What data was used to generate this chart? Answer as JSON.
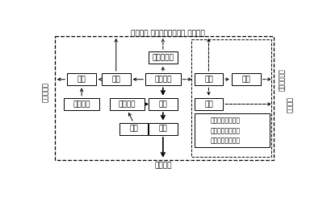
{
  "title_top": "输出电力 输出煤气、液化气 输出焦炭",
  "left_label": "输出\n铝\n制\n品",
  "right_label_top": "输\n出\n化\n工\n产\n品",
  "right_label_bottom": "输\n出\n水\n泥",
  "bottom_label": "输出钢材",
  "legend_items": [
    {
      "label": "煤－电－铝产业链",
      "style": "solid"
    },
    {
      "label": "煤－焦－化产业链",
      "style": "dashed"
    },
    {
      "label": "煤－铁－钢产业链",
      "style": "hollow"
    }
  ],
  "bg_color": "#ffffff",
  "border_color": "#000000",
  "text_color": "#000000",
  "fontsize": 6.5,
  "legend_fontsize": 5.5
}
